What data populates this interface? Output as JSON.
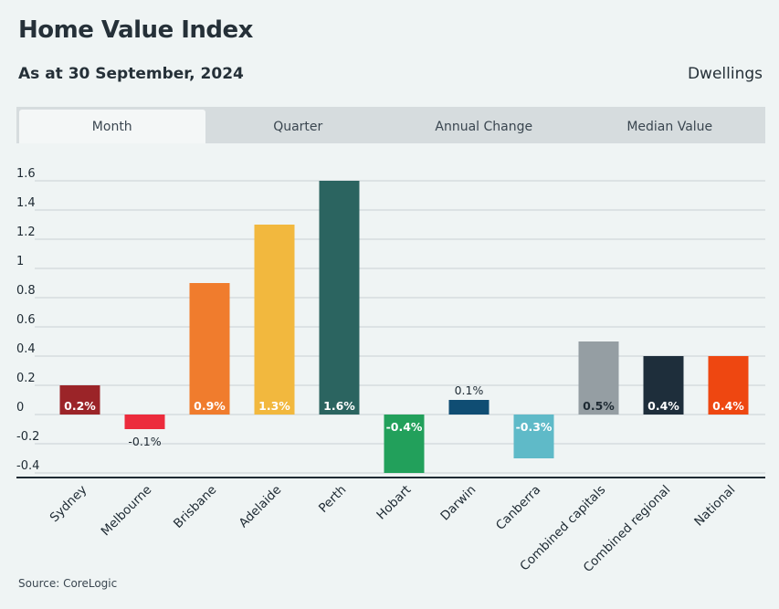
{
  "header": {
    "title": "Home Value Index",
    "subtitle": "As at 30 September, 2024",
    "measure": "Dwellings"
  },
  "tabs": [
    {
      "label": "Month",
      "active": true
    },
    {
      "label": "Quarter",
      "active": false
    },
    {
      "label": "Annual Change",
      "active": false
    },
    {
      "label": "Median Value",
      "active": false
    }
  ],
  "footer": {
    "source": "Source: CoreLogic"
  },
  "chart_data": {
    "type": "bar",
    "title": "",
    "xlabel": "",
    "ylabel": "",
    "categories": [
      "Sydney",
      "Melbourne",
      "Brisbane",
      "Adelaide",
      "Perth",
      "Hobart",
      "Darwin",
      "Canberra",
      "Combined capitals",
      "Combined regional",
      "National"
    ],
    "values": [
      0.2,
      -0.1,
      0.9,
      1.3,
      1.6,
      -0.4,
      0.1,
      -0.3,
      0.5,
      0.4,
      0.4
    ],
    "data_labels": [
      "0.2%",
      "-0.1%",
      "0.9%",
      "1.3%",
      "1.6%",
      "-0.4%",
      "0.1%",
      "-0.3%",
      "0.5%",
      "0.4%",
      "0.4%"
    ],
    "colors": [
      "#9b2428",
      "#ec2b3c",
      "#f07c2d",
      "#f2b83e",
      "#2b6460",
      "#22a05b",
      "#0f4d73",
      "#5fbac8",
      "#959ea3",
      "#1e2e3b",
      "#ee4711"
    ],
    "y_ticks": [
      -0.4,
      -0.2,
      0,
      0.2,
      0.4,
      0.6,
      0.8,
      1,
      1.2,
      1.4,
      1.6
    ],
    "y_tick_labels": [
      "-0.4",
      "-0.2",
      "0",
      "0.2",
      "0.4",
      "0.6",
      "0.8",
      "1",
      "1.2",
      "1.4",
      "1.6"
    ],
    "ylim": [
      -0.43,
      1.6
    ],
    "grid": true,
    "legend": "none"
  }
}
